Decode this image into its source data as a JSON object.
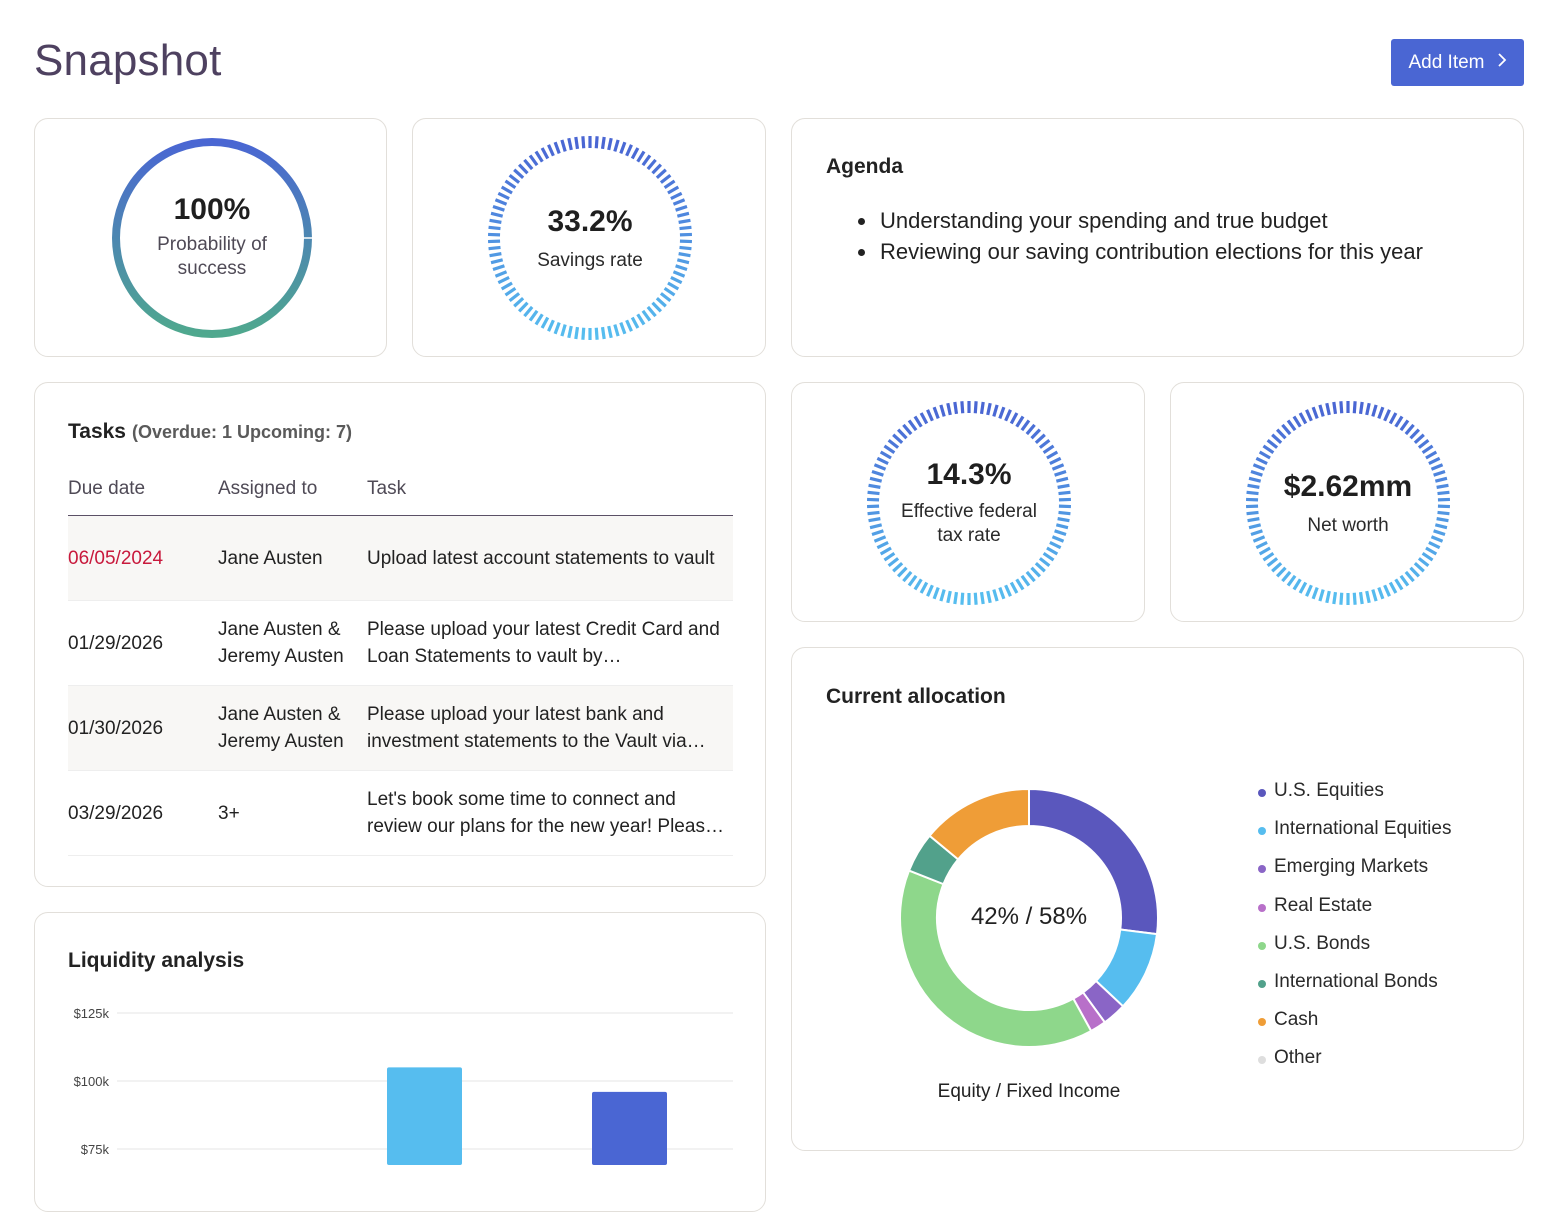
{
  "header": {
    "title": "Snapshot",
    "add_item_label": "Add Item",
    "add_item_icon": "chevron-right-icon"
  },
  "colors": {
    "accent": "#4a66d3",
    "overdue": "#c8193c",
    "gauge_gradient_top": "#4a66d3",
    "gauge_gradient_bottom": "#4fa88e",
    "dash_top": "#4a66d3",
    "dash_bottom": "#56bdef"
  },
  "metrics": {
    "probability": {
      "value": "100%",
      "label_line1": "Probability of",
      "label_line2": "success",
      "fraction": 1.0
    },
    "savings": {
      "value": "33.2%",
      "label": "Savings rate"
    },
    "tax": {
      "value": "14.3%",
      "label_line1": "Effective federal",
      "label_line2": "tax rate"
    },
    "net_worth": {
      "value": "$2.62mm",
      "label": "Net worth"
    }
  },
  "agenda": {
    "title": "Agenda",
    "items": [
      "Understanding your spending and true budget",
      "Reviewing our saving contribution elections for this year"
    ]
  },
  "tasks": {
    "title": "Tasks",
    "summary": "(Overdue: 1  Upcoming: 7)",
    "columns": [
      "Due date",
      "Assigned to",
      "Task"
    ],
    "rows": [
      {
        "due": "06/05/2024",
        "overdue": true,
        "assigned": "Jane Austen",
        "task": "Upload latest account statements to vault"
      },
      {
        "due": "01/29/2026",
        "overdue": false,
        "assigned": "Jane Austen & Jeremy Austen",
        "task": "Please upload your latest Credit Card and Loan Statements to vault by…"
      },
      {
        "due": "01/30/2026",
        "overdue": false,
        "assigned": "Jane Austen & Jeremy Austen",
        "task": "Please upload your latest bank and investment statements to the Vault via…"
      },
      {
        "due": "03/29/2026",
        "overdue": false,
        "assigned": "3+",
        "task": "Let's book some time to connect and review our plans for the new year!  Pleas…"
      }
    ]
  },
  "allocation": {
    "title": "Current allocation",
    "center_label": "42% / 58%",
    "caption": "Equity / Fixed Income"
  },
  "liquidity": {
    "title": "Liquidity analysis"
  },
  "chart_data": [
    {
      "type": "pie",
      "title": "Current allocation",
      "donut": true,
      "center_text": "42% / 58%",
      "caption": "Equity / Fixed Income",
      "legend_position": "right",
      "slices": [
        {
          "name": "U.S. Equities",
          "value": 27,
          "color": "#5a57bd"
        },
        {
          "name": "International Equities",
          "value": 10,
          "color": "#56bdef"
        },
        {
          "name": "Emerging Markets",
          "value": 3,
          "color": "#8a65c6"
        },
        {
          "name": "Real Estate",
          "value": 2,
          "color": "#b870c9"
        },
        {
          "name": "U.S. Bonds",
          "value": 39,
          "color": "#8ed78b"
        },
        {
          "name": "International Bonds",
          "value": 5,
          "color": "#52a18b"
        },
        {
          "name": "Cash",
          "value": 14,
          "color": "#ef9d37"
        },
        {
          "name": "Other",
          "value": 0,
          "color": "#dedede"
        }
      ]
    },
    {
      "type": "bar",
      "title": "Liquidity analysis",
      "xlabel": "",
      "ylabel": "",
      "yticks": [
        "$75k",
        "$100k",
        "$125k"
      ],
      "ytick_values": [
        75000,
        100000,
        125000
      ],
      "ylim_visible": [
        70000,
        125000
      ],
      "grid": true,
      "series": [
        {
          "name": "bar-1",
          "value": 105000,
          "color": "#56bdef"
        },
        {
          "name": "bar-2",
          "value": 96000,
          "color": "#4a66d3"
        }
      ]
    }
  ]
}
